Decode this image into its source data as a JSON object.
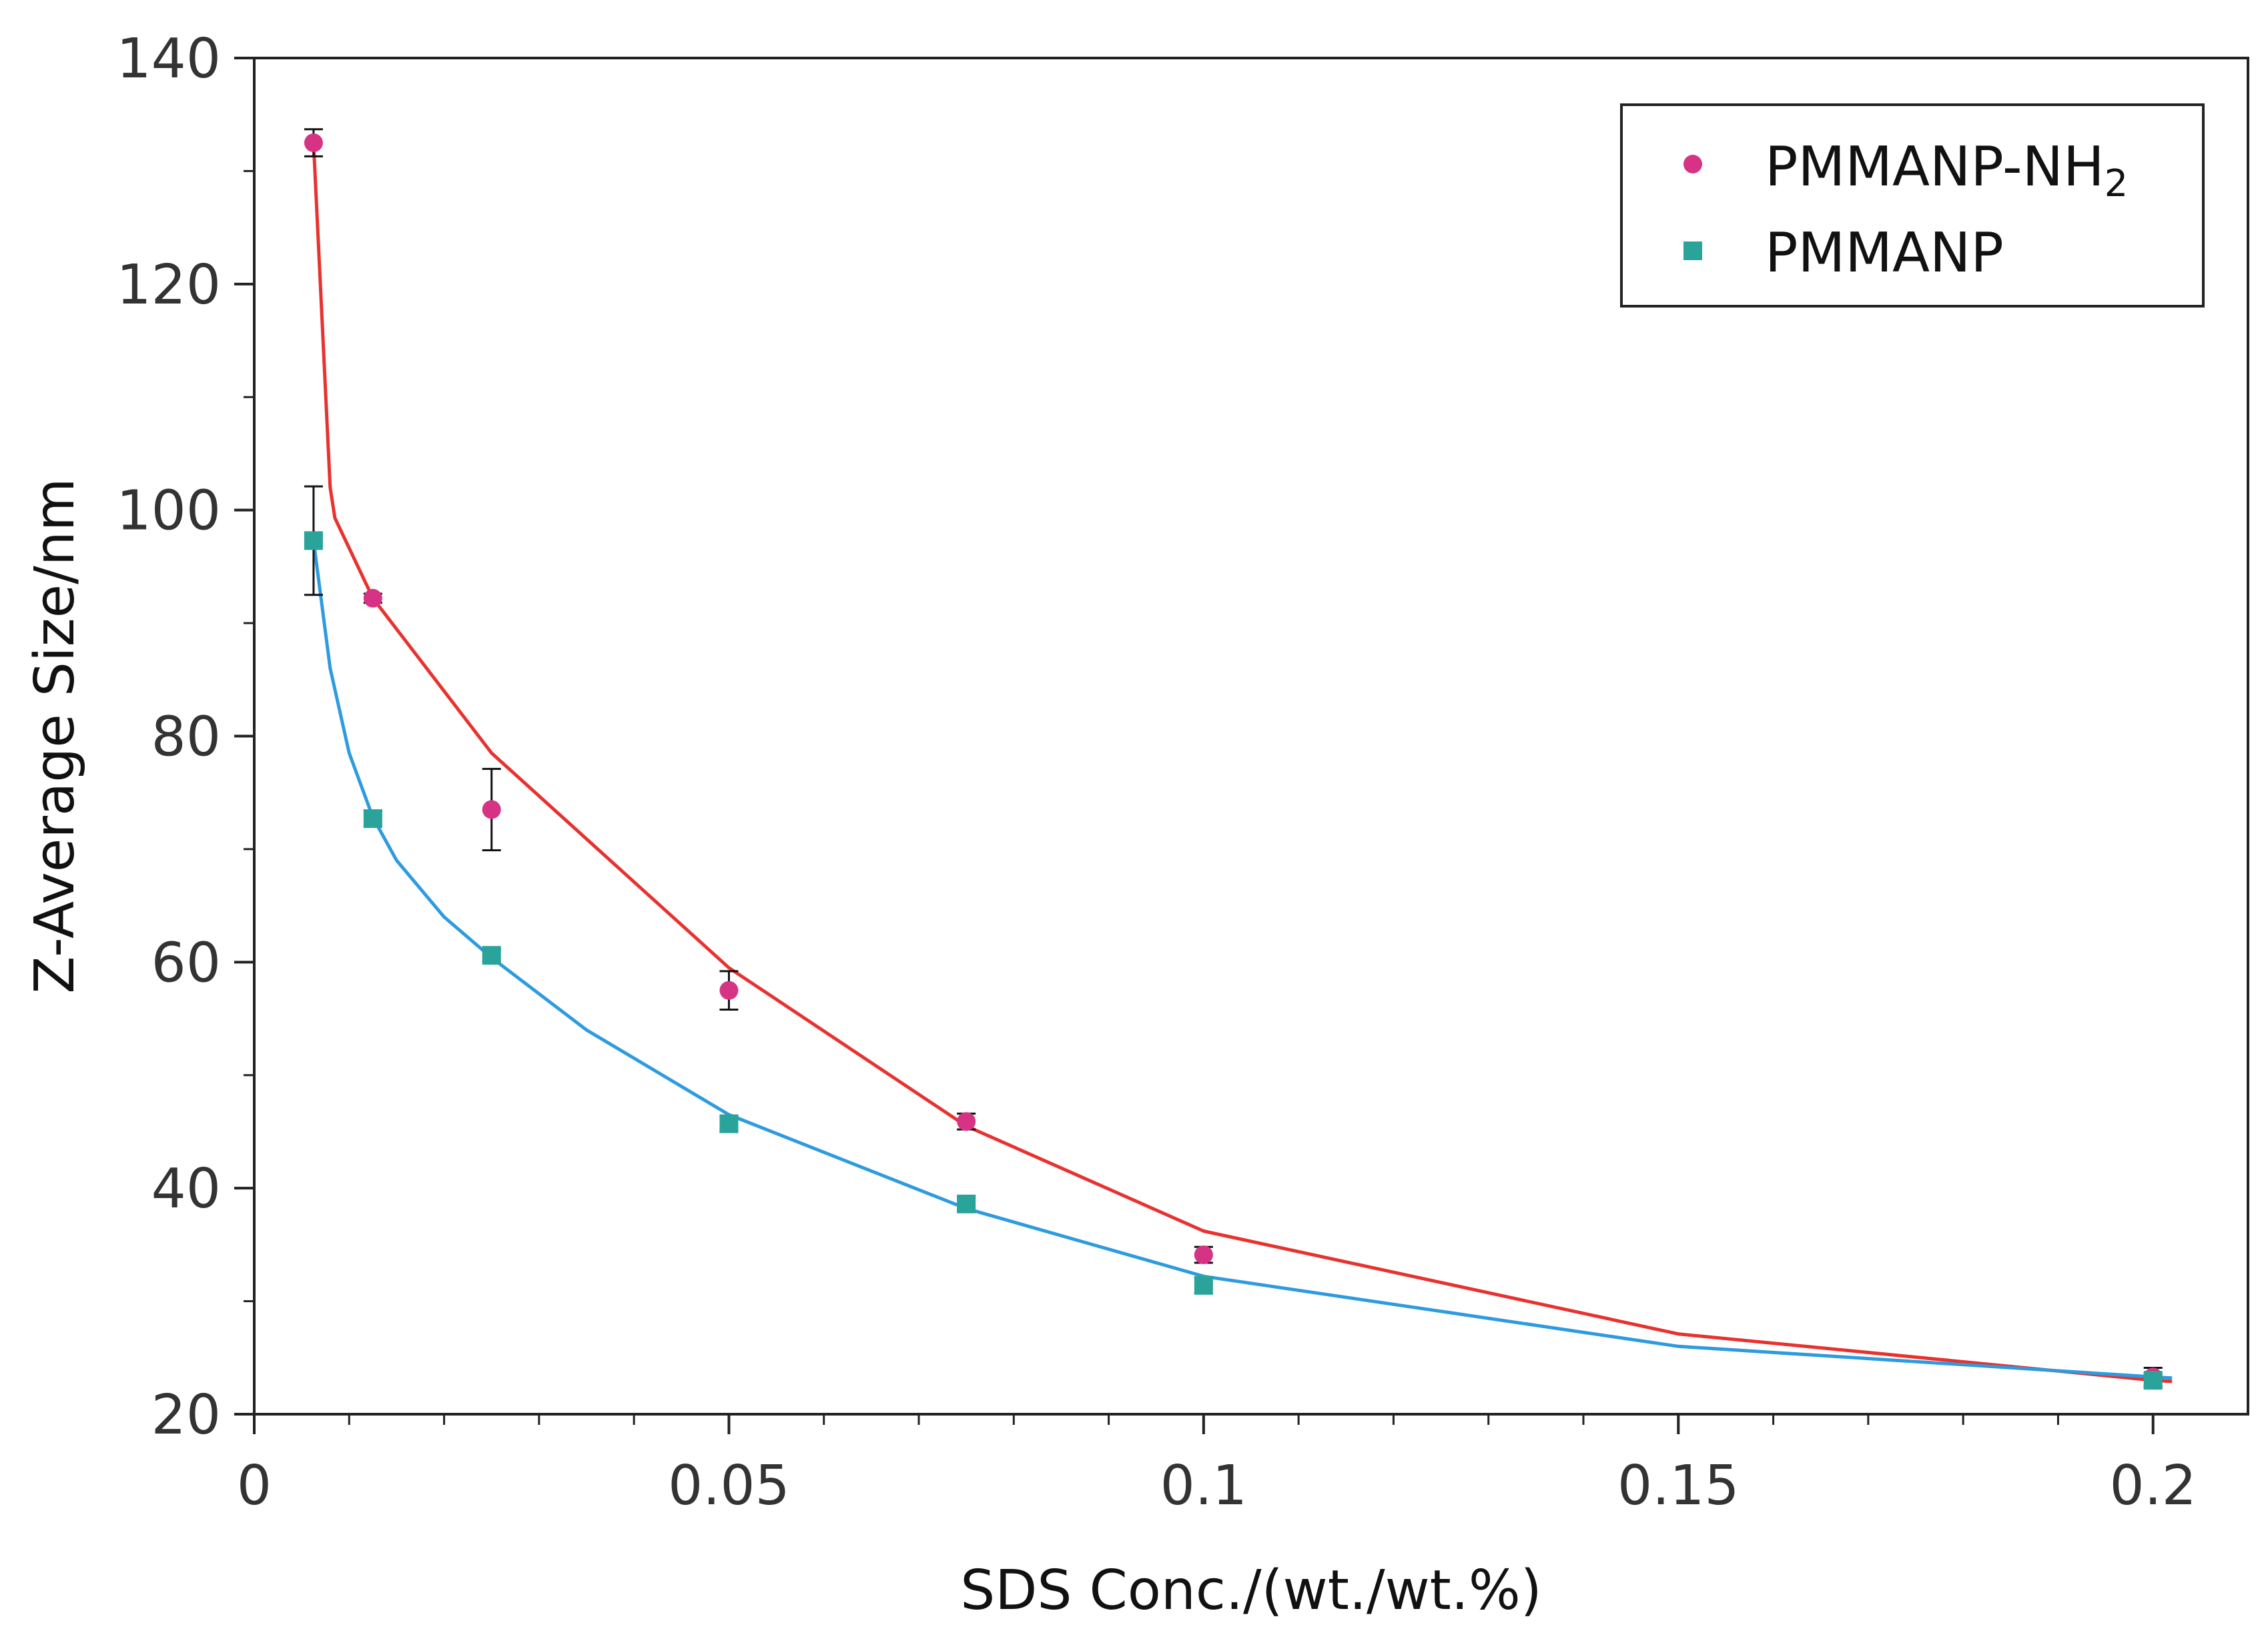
{
  "chart_data": {
    "type": "scatter",
    "title": "",
    "xlabel": "SDS Conc./(wt./wt.%)",
    "ylabel": "Z-Average Size/nm",
    "xlim": [
      0,
      0.21
    ],
    "ylim": [
      20,
      140
    ],
    "xticks": [
      0,
      0.05,
      0.1,
      0.15,
      0.2
    ],
    "xtick_labels": [
      "0",
      "0.05",
      "0.1",
      "0.15",
      "0.2"
    ],
    "yticks": [
      20,
      40,
      60,
      80,
      100,
      120,
      140
    ],
    "ytick_labels": [
      "20",
      "40",
      "60",
      "80",
      "100",
      "120",
      "140"
    ],
    "grid": false,
    "legend_position": "top-right",
    "series": [
      {
        "name": "PMMANP-NH",
        "subscript": "2",
        "marker": "circle",
        "color": "#d63384",
        "fit_color": "#e8322f",
        "x": [
          0.00625,
          0.0125,
          0.025,
          0.05,
          0.075,
          0.1,
          0.2
        ],
        "values": [
          132.5,
          92.2,
          73.5,
          57.5,
          45.9,
          34.1,
          23.3
        ],
        "errors": [
          1.2,
          0.4,
          3.6,
          1.7,
          0.7,
          0.7,
          0.8
        ],
        "fit_x": [
          0.00625,
          0.008,
          0.0085,
          0.0125,
          0.025,
          0.05,
          0.075,
          0.1,
          0.15,
          0.2,
          0.202
        ],
        "fit_y": [
          132.5,
          102,
          99.3,
          92.2,
          78.5,
          59.5,
          45.5,
          36.2,
          27.1,
          23.0,
          22.9
        ]
      },
      {
        "name": "PMMANP",
        "subscript": "",
        "marker": "square",
        "color": "#2aa39a",
        "fit_color": "#2e9be0",
        "x": [
          0.00625,
          0.0125,
          0.025,
          0.05,
          0.075,
          0.1,
          0.2
        ],
        "values": [
          97.3,
          72.7,
          60.6,
          45.7,
          38.6,
          31.4,
          23.0
        ],
        "errors": [
          4.8,
          0.7,
          0.5,
          0.7,
          0.6,
          0.7,
          0.6
        ],
        "fit_x": [
          0.00625,
          0.008,
          0.01,
          0.0125,
          0.015,
          0.02,
          0.025,
          0.035,
          0.05,
          0.075,
          0.1,
          0.15,
          0.2,
          0.202
        ],
        "fit_y": [
          97.3,
          86.0,
          78.5,
          72.8,
          69.0,
          64.0,
          60.4,
          54.0,
          46.5,
          38.2,
          32.2,
          26.0,
          23.3,
          23.2
        ]
      }
    ]
  }
}
